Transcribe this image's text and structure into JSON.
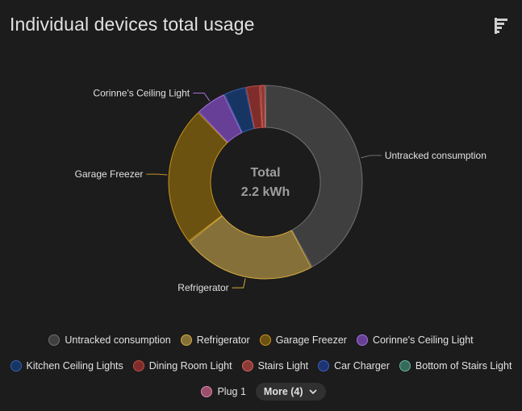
{
  "card": {
    "title": "Individual devices total usage",
    "sort_icon": "sort-bars-icon"
  },
  "center": {
    "title": "Total",
    "value": "2.2 kWh"
  },
  "colors": {
    "background": "#1c1c1c",
    "text": "#e1e1e1",
    "muted_text": "#9e9e9e"
  },
  "chart_data": {
    "type": "pie",
    "donut": true,
    "unit": "kWh",
    "total": 2.2,
    "slices": [
      {
        "name": "Untracked consumption",
        "value": 0.9,
        "color": "#3f3f3f",
        "border": "#707070",
        "labeled": true
      },
      {
        "name": "Refrigerator",
        "value": 0.48,
        "color": "#86703a",
        "border": "#d5ac3f",
        "labeled": true
      },
      {
        "name": "Garage Freezer",
        "value": 0.5,
        "color": "#6c5210",
        "border": "#c69320",
        "labeled": true
      },
      {
        "name": "Corinne's Ceiling Light",
        "value": 0.11,
        "color": "#673f96",
        "border": "#a173d8",
        "labeled": true
      },
      {
        "name": "Kitchen Ceiling Lights",
        "value": 0.08,
        "color": "#173563",
        "border": "#3660b0",
        "labeled": false
      },
      {
        "name": "Dining Room Light",
        "value": 0.05,
        "color": "#7e2d2a",
        "border": "#c24d45",
        "labeled": false
      },
      {
        "name": "Stairs Light",
        "value": 0.02,
        "color": "#8d3b37",
        "border": "#d4645b",
        "labeled": false
      }
    ]
  },
  "legend": {
    "rows": [
      [
        {
          "label": "Untracked consumption",
          "color": "#3f3f3f",
          "border": "#707070"
        },
        {
          "label": "Refrigerator",
          "color": "#86703a",
          "border": "#d5ac3f"
        },
        {
          "label": "Garage Freezer",
          "color": "#6c5210",
          "border": "#c69320"
        },
        {
          "label": "Corinne's Ceiling Light",
          "color": "#673f96",
          "border": "#a173d8"
        }
      ],
      [
        {
          "label": "Kitchen Ceiling Lights",
          "color": "#173563",
          "border": "#3660b0"
        },
        {
          "label": "Dining Room Light",
          "color": "#7e2d2a",
          "border": "#c24d45"
        },
        {
          "label": "Stairs Light",
          "color": "#8d3b37",
          "border": "#d4645b"
        },
        {
          "label": "Car Charger",
          "color": "#1e3472",
          "border": "#3f5fbf"
        },
        {
          "label": "Bottom of Stairs Light",
          "color": "#356a5a",
          "border": "#67b39c"
        }
      ],
      [
        {
          "label": "Plug 1",
          "color": "#9b4f6c",
          "border": "#d98aa8"
        }
      ]
    ],
    "more_label": "More (4)",
    "more_icon": "chevron-down-icon"
  }
}
